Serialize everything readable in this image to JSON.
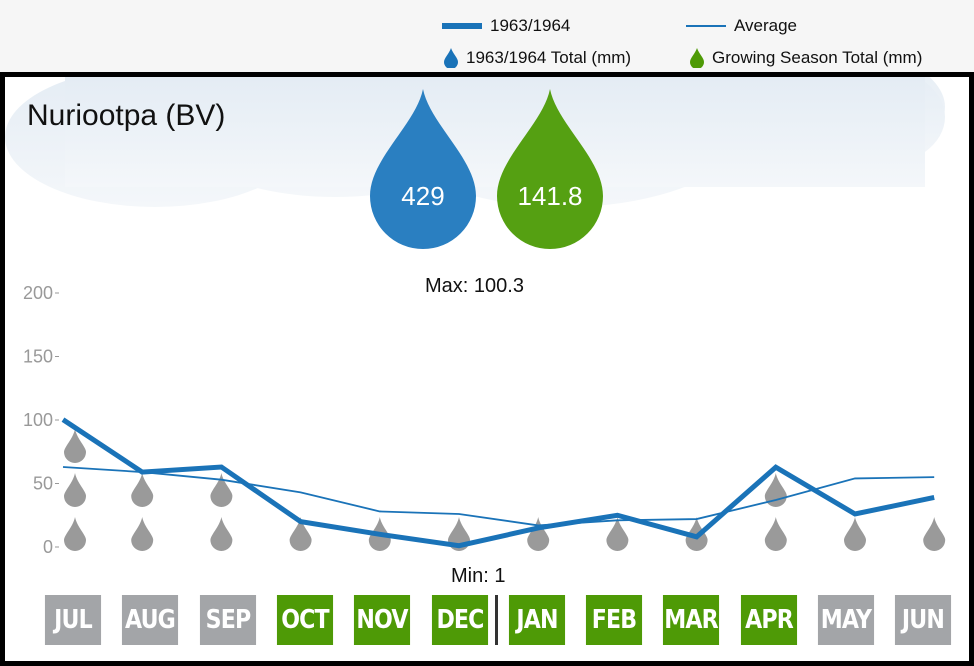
{
  "legend": {
    "series_label": "1963/1964",
    "average_label": "Average",
    "total_label": "1963/1964 Total (mm)",
    "growing_label": "Growing Season Total (mm)"
  },
  "title": "Nuriootpa (BV)",
  "totals": {
    "year_total": "429",
    "growing_total": "141.8"
  },
  "max_label": "Max: 100.3",
  "min_label": "Min: 1",
  "colors": {
    "series": "#1a73b8",
    "average": "#1a73b8",
    "growing": "#4e9a06",
    "off_season": "#a3a5a8",
    "drop": "#9a9a9a"
  },
  "chart_data": {
    "type": "line",
    "categories": [
      "JUL",
      "AUG",
      "SEP",
      "OCT",
      "NOV",
      "DEC",
      "JAN",
      "FEB",
      "MAR",
      "APR",
      "MAY",
      "JUN"
    ],
    "series": [
      {
        "name": "1963/1964",
        "values": [
          100.3,
          59,
          63,
          20,
          10,
          1,
          15,
          25,
          8,
          62.8,
          26,
          39
        ]
      },
      {
        "name": "Average",
        "values": [
          63,
          59,
          53,
          43,
          28,
          26,
          17,
          21,
          22,
          37,
          54,
          55
        ]
      }
    ],
    "ylim": [
      0,
      200
    ],
    "yticks": [
      "0",
      "50",
      "100",
      "150",
      "200"
    ],
    "drop_counts": [
      3,
      2,
      2,
      1,
      1,
      1,
      1,
      1,
      1,
      2,
      1,
      1
    ],
    "growing_season": [
      false,
      false,
      false,
      true,
      true,
      true,
      true,
      true,
      true,
      true,
      false,
      false
    ]
  }
}
